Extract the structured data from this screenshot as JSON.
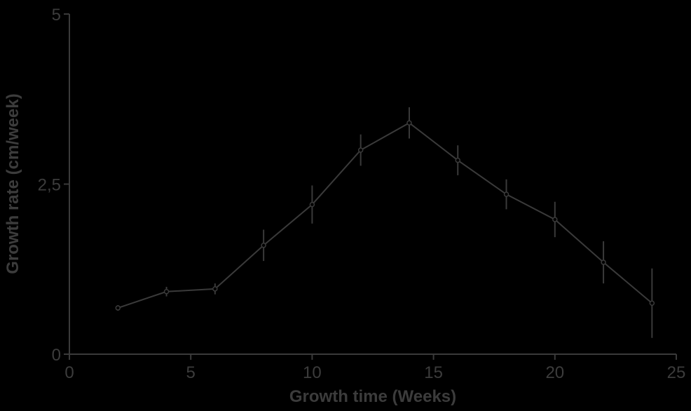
{
  "chart_data": {
    "type": "line",
    "title": "",
    "xlabel": "Growth time (Weeks)",
    "ylabel": "Growth rate (cm/week)",
    "xlim": [
      0,
      25
    ],
    "ylim": [
      0,
      5
    ],
    "xticks": [
      "0",
      "5",
      "10",
      "15",
      "20",
      "25"
    ],
    "yticks": [
      "0",
      "2,5",
      "5"
    ],
    "grid": false,
    "series": [
      {
        "x": [
          2,
          4,
          6,
          8,
          10,
          12,
          14,
          16,
          18,
          20,
          22,
          24
        ],
        "y": [
          0.68,
          0.92,
          0.96,
          1.6,
          2.2,
          3.0,
          3.4,
          2.85,
          2.35,
          1.98,
          1.35,
          0.75
        ],
        "err": [
          0.04,
          0.07,
          0.08,
          0.23,
          0.28,
          0.23,
          0.23,
          0.22,
          0.22,
          0.26,
          0.31,
          0.51
        ]
      }
    ],
    "colors": {
      "background": "#000000",
      "ink": "#3a3a3a"
    }
  }
}
